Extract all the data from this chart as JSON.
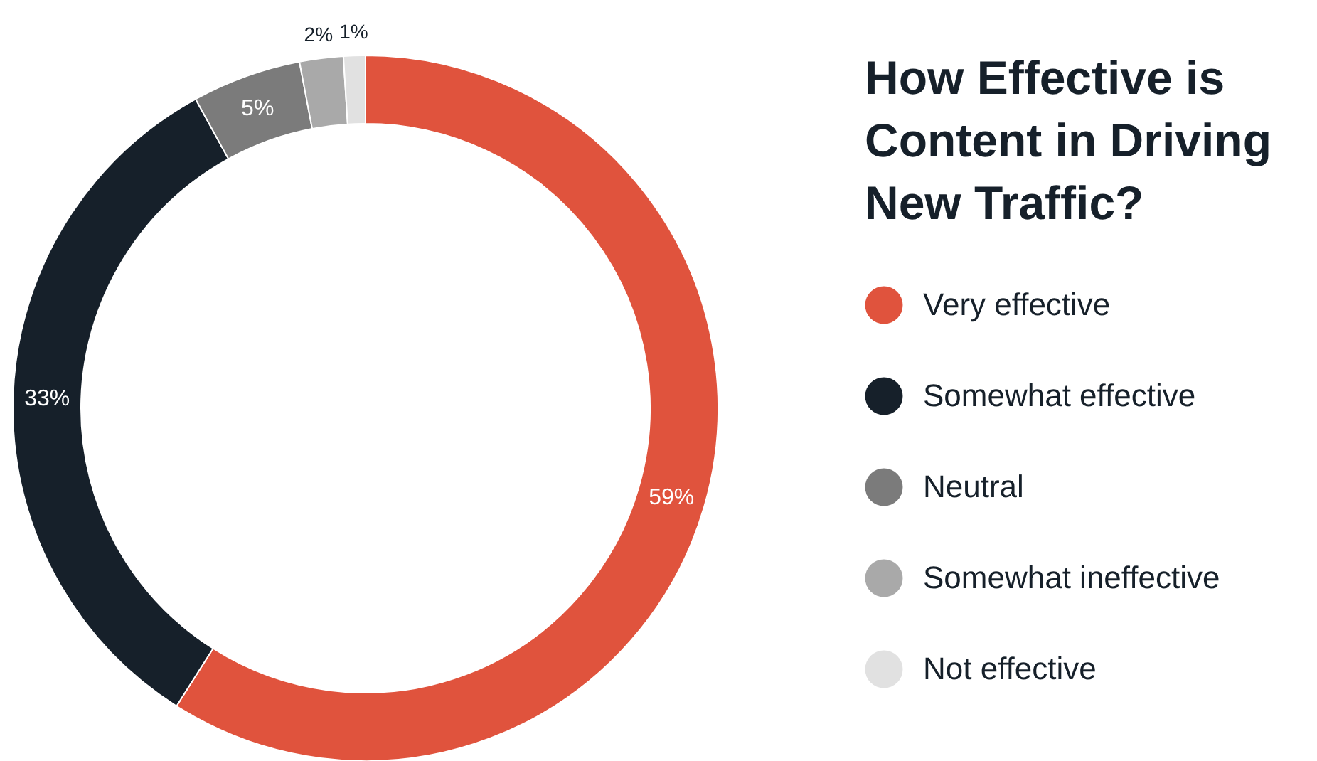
{
  "chart_data": {
    "type": "donut",
    "title": "How Effective is Content in Driving New Traffic?",
    "categories": [
      "Very effective",
      "Somewhat effective",
      "Neutral",
      "Somewhat ineffective",
      "Not effective"
    ],
    "values": [
      59,
      33,
      5,
      2,
      1
    ],
    "colors": [
      "#e0533d",
      "#16202a",
      "#7b7b7b",
      "#a9a9a9",
      "#e1e1e1"
    ],
    "value_labels": [
      "59%",
      "33%",
      "5%",
      "2%",
      "1%"
    ],
    "legend": "right"
  }
}
